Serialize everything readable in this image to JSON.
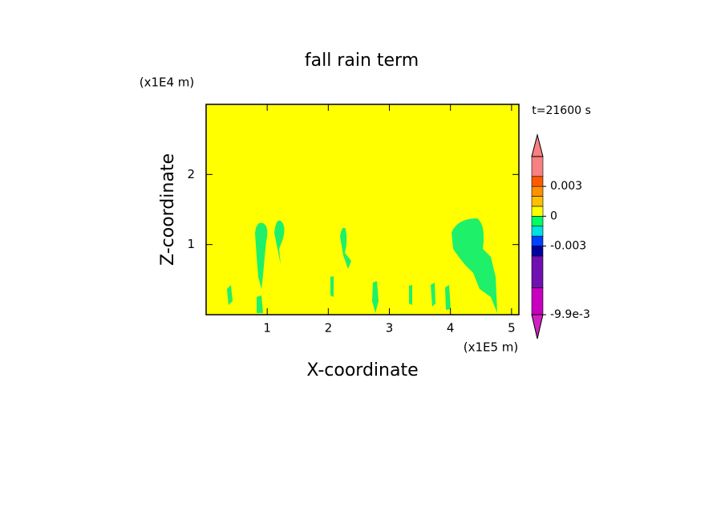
{
  "chart_data": {
    "type": "contour",
    "title": "fall rain term",
    "x_label": "X-coordinate",
    "y_label": "Z-coordinate",
    "x_unit": "(x1E5 m)",
    "y_unit": "(x1E4 m)",
    "annotation": "t=21600 s",
    "xlim": [
      0,
      5.12
    ],
    "ylim": [
      0,
      3
    ],
    "xticks": [
      1,
      2,
      3,
      4,
      5
    ],
    "yticks": [
      1,
      2
    ],
    "background_color": "#ffff00",
    "colorbar": {
      "levels": [
        -0.0099,
        -0.0072,
        -0.004,
        -0.003,
        -0.002,
        -0.001,
        0,
        0.001,
        0.002,
        0.003,
        0.004,
        0.006
      ],
      "colors": [
        "#c800c0",
        "#7010b0",
        "#0000a0",
        "#0040ff",
        "#00e0e0",
        "#00ff60",
        "#ffff00",
        "#ffc000",
        "#ff9000",
        "#ff5a00",
        "#f88080"
      ],
      "extend_colors": [
        "#d020c0",
        "#f88080"
      ],
      "ticks": [
        0.003,
        0,
        -0.003,
        {
          "value": -0.0099,
          "label": "-9.9e-3"
        }
      ]
    }
  }
}
